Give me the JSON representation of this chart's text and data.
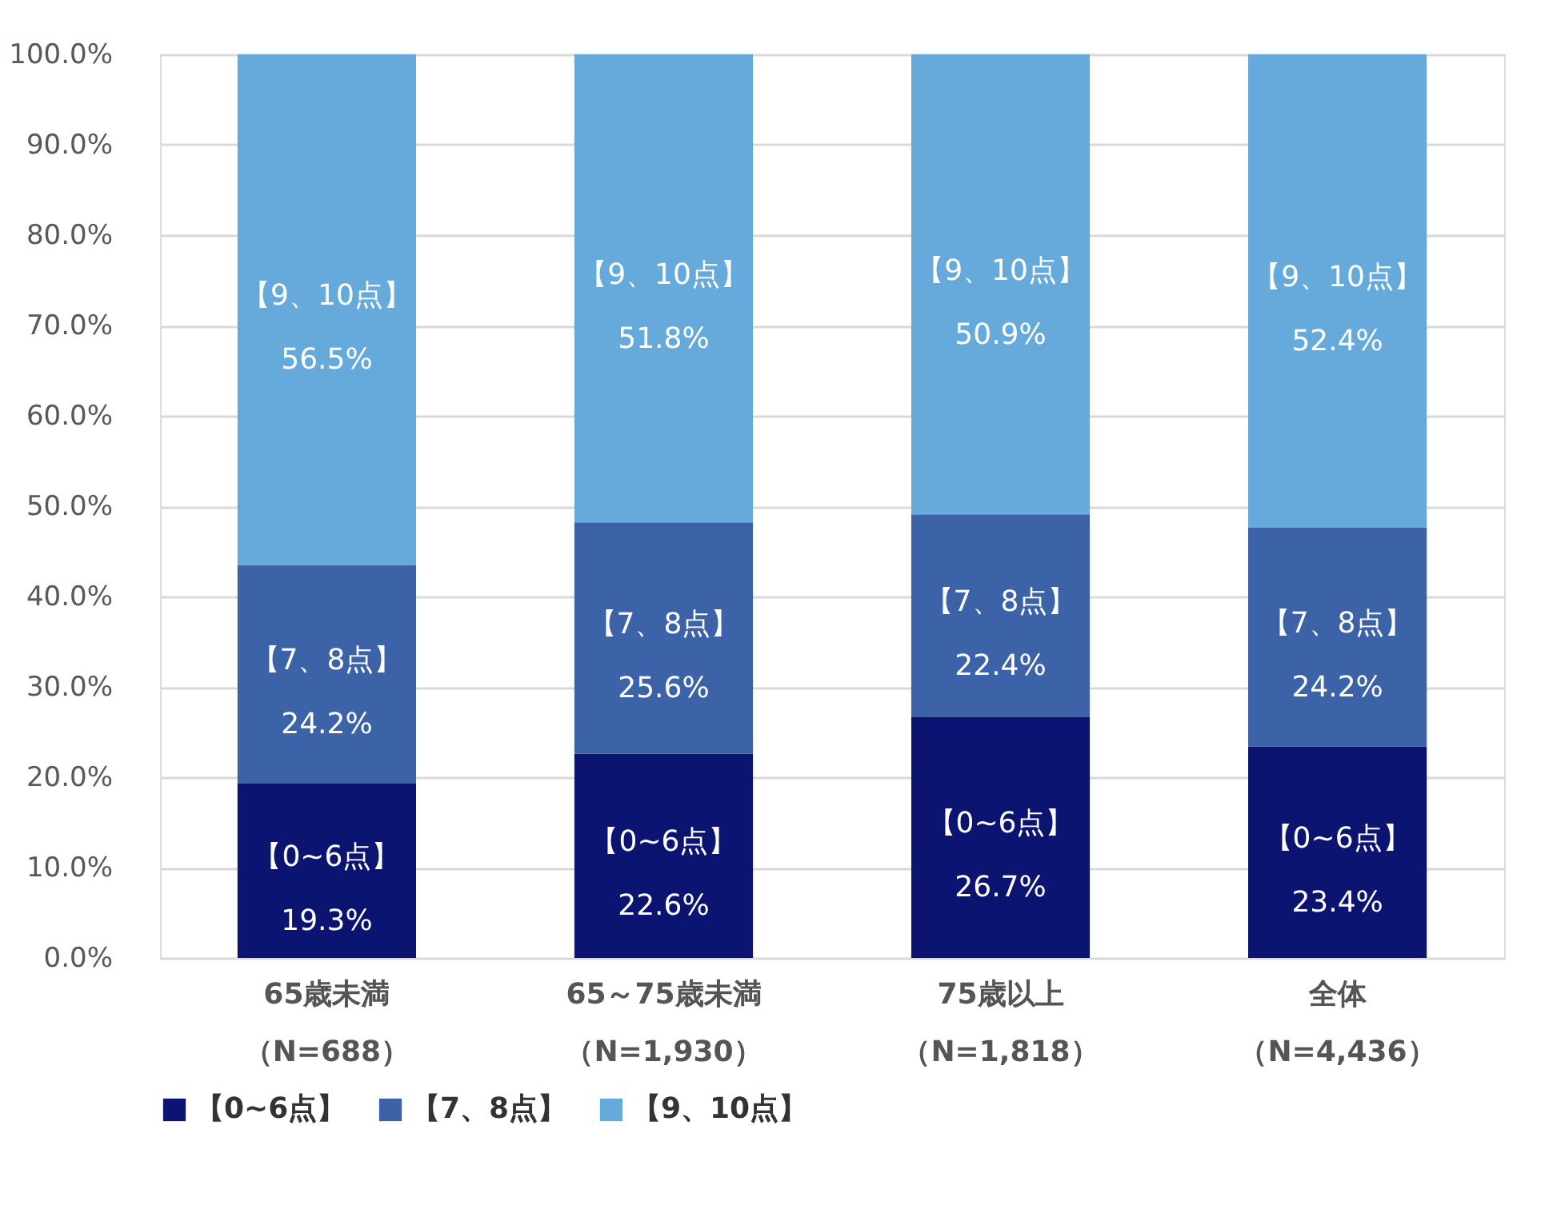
{
  "chart_data": {
    "type": "bar",
    "stacked": true,
    "categories": [
      "65歳未満（N=688）",
      "65～75歳未満（N=1,930）",
      "75歳以上（N=1,818）",
      "全体（N=4,436）"
    ],
    "series": [
      {
        "name": "【0~6点】",
        "color": "#0b1470",
        "values": [
          19.3,
          22.6,
          26.7,
          23.4
        ],
        "value_labels": [
          "19.3%",
          "22.6%",
          "26.7%",
          "23.4%"
        ]
      },
      {
        "name": "【7、8点】",
        "color": "#3c62a8",
        "values": [
          24.2,
          25.6,
          22.4,
          24.2
        ],
        "value_labels": [
          "24.2%",
          "25.6%",
          "22.4%",
          "24.2%"
        ]
      },
      {
        "name": "【9、10点】",
        "color": "#66aadc",
        "values": [
          56.5,
          51.8,
          50.9,
          52.4
        ],
        "value_labels": [
          "56.5%",
          "51.8%",
          "50.9%",
          "52.4%"
        ]
      }
    ],
    "ylim": [
      0,
      100
    ],
    "yticks": [
      {
        "value": 0,
        "label": "0.0%"
      },
      {
        "value": 10,
        "label": "10.0%"
      },
      {
        "value": 20,
        "label": "20.0%"
      },
      {
        "value": 30,
        "label": "30.0%"
      },
      {
        "value": 40,
        "label": "40.0%"
      },
      {
        "value": 50,
        "label": "50.0%"
      },
      {
        "value": 60,
        "label": "60.0%"
      },
      {
        "value": 70,
        "label": "70.0%"
      },
      {
        "value": 80,
        "label": "80.0%"
      },
      {
        "value": 90,
        "label": "90.0%"
      },
      {
        "value": 100,
        "label": "100.0%"
      }
    ],
    "grid": "y",
    "legend": "bottom"
  }
}
